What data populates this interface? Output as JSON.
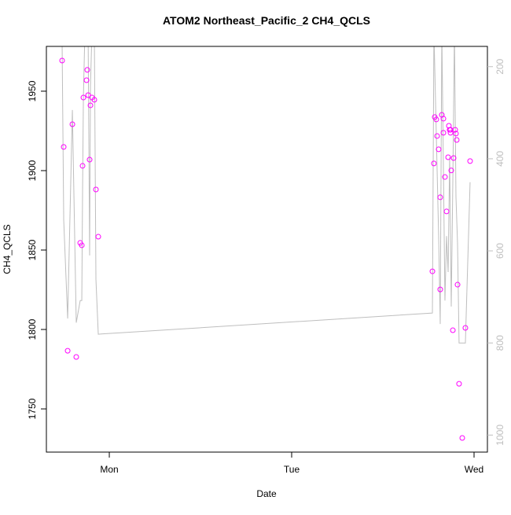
{
  "chart_data": {
    "type": "scatter",
    "title": "ATOM2 Northeast_Pacific_2 CH4_QCLS",
    "x_label": "Date",
    "y_label": "CH4_QCLS",
    "xlim": [
      15.72,
      73.76
    ],
    "xticks": [
      {
        "value": 24,
        "label": "Mon"
      },
      {
        "value": 48,
        "label": "Tue"
      },
      {
        "value": 72,
        "label": "Wed"
      }
    ],
    "ylim": [
      1722.8,
      1978.2
    ],
    "yticks": [
      1750,
      1800,
      1850,
      1900,
      1950
    ],
    "y2lim": [
      1037,
      156
    ],
    "y2ticks": [
      200,
      400,
      600,
      800,
      1000
    ],
    "series": [
      {
        "type": "line",
        "axis": "y2",
        "color": "#bebebe",
        "x": [
          17.79,
          18.0,
          18.52,
          19.14,
          19.65,
          20.17,
          20.38,
          20.48,
          20.59,
          20.79,
          21.21,
          21.41,
          21.52,
          21.72,
          22.03,
          22.24,
          22.55,
          66.52,
          66.72,
          67.34,
          67.55,
          67.76,
          68.17,
          68.38,
          68.59,
          68.79,
          69.0,
          69.21,
          69.42,
          69.62,
          69.83,
          70.03,
          70.86,
          71.48
        ],
        "values": [
          150,
          533,
          747,
          294,
          756,
          708,
          708,
          474,
          268,
          123,
          123,
          610,
          243,
          123,
          123,
          662,
          781,
          735,
          123,
          568,
          759,
          123,
          708,
          568,
          646,
          397,
          721,
          448,
          123,
          482,
          585,
          800,
          800,
          451
        ]
      },
      {
        "type": "scatter",
        "color": "#ff00ff",
        "x": [
          17.79,
          18.0,
          18.52,
          19.14,
          19.65,
          20.17,
          20.38,
          20.48,
          20.59,
          21.0,
          21.1,
          21.21,
          21.41,
          21.52,
          21.72,
          22.03,
          22.24,
          22.55,
          66.52,
          66.72,
          66.83,
          67.03,
          67.14,
          67.34,
          67.55,
          67.55,
          67.76,
          67.97,
          67.97,
          68.17,
          68.38,
          68.59,
          68.69,
          68.79,
          68.9,
          68.9,
          69.0,
          69.21,
          69.31,
          69.52,
          69.62,
          69.72,
          69.83,
          70.03,
          70.45,
          70.86,
          71.48
        ],
        "values": [
          1969.3,
          1914.9,
          1786.6,
          1929.2,
          1782.7,
          1854.5,
          1853.0,
          1903,
          1946,
          1956.9,
          1963.4,
          1947.5,
          1906.9,
          1941.1,
          1946,
          1944.6,
          1888.1,
          1858.4,
          1836.6,
          1904.5,
          1933.7,
          1932.2,
          1921.8,
          1913.4,
          1883.2,
          1825.2,
          1935.1,
          1932.7,
          1923.8,
          1896,
          1874.3,
          1908.4,
          1928.2,
          1925.7,
          1925.7,
          1923.8,
          1900.1,
          1799.5,
          1907.9,
          1925.7,
          1923.3,
          1919.3,
          1828.2,
          1765.8,
          1731.7,
          1801,
          1906
        ]
      }
    ]
  }
}
